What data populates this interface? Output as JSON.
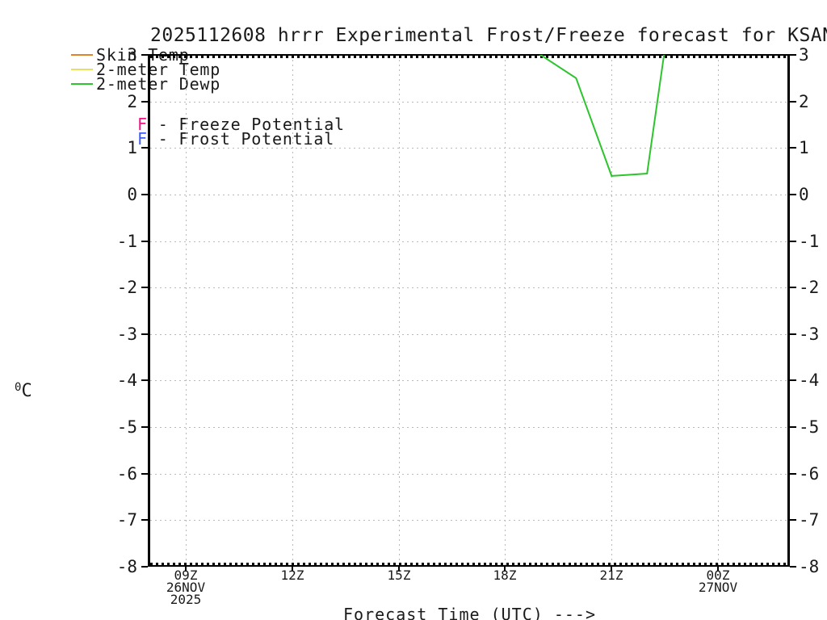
{
  "title": "2025112608 hrrr Experimental Frost/Freeze forecast for KSAN",
  "colors": {
    "skin_temp": "#e0842c",
    "temp_2m": "#e8e060",
    "dewp_2m": "#2dc42d",
    "freeze_flag": "#f01383",
    "frost_flag": "#3f5df0",
    "grid": "#b9b9b9",
    "axis": "#000000"
  },
  "legend": {
    "series": [
      {
        "label": "Skin Temp",
        "color": "#e0842c"
      },
      {
        "label": "2-meter Temp",
        "color": "#e8e060"
      },
      {
        "label": "2-meter Dewp",
        "color": "#2dc42d"
      }
    ],
    "flags": [
      {
        "letter": "F",
        "rest": " - Freeze Potential",
        "color": "#f01383"
      },
      {
        "letter": "F",
        "rest": " - Frost Potential",
        "color": "#3f5df0"
      }
    ]
  },
  "y_axis": {
    "unit_sup": "0",
    "unit_base": "C",
    "min": -8,
    "max": 3,
    "ticks": [
      {
        "value": 3,
        "label": "3"
      },
      {
        "value": 2,
        "label": "2"
      },
      {
        "value": 1,
        "label": "1"
      },
      {
        "value": 0,
        "label": "0"
      },
      {
        "value": -1,
        "label": "-1"
      },
      {
        "value": -2,
        "label": "-2"
      },
      {
        "value": -3,
        "label": "-3"
      },
      {
        "value": -4,
        "label": "-4"
      },
      {
        "value": -5,
        "label": "-5"
      },
      {
        "value": -6,
        "label": "-6"
      },
      {
        "value": -7,
        "label": "-7"
      },
      {
        "value": -8,
        "label": "-8"
      }
    ]
  },
  "x_axis": {
    "title": "Forecast Time (UTC) --->",
    "start_hour": 8,
    "end_hour": 26,
    "ticks": [
      {
        "hour": 9,
        "label": "09Z",
        "sub": [
          "26NOV",
          "2025"
        ]
      },
      {
        "hour": 12,
        "label": "12Z",
        "sub": []
      },
      {
        "hour": 15,
        "label": "15Z",
        "sub": []
      },
      {
        "hour": 18,
        "label": "18Z",
        "sub": []
      },
      {
        "hour": 21,
        "label": "21Z",
        "sub": []
      },
      {
        "hour": 24,
        "label": "00Z",
        "sub": [
          "27NOV"
        ]
      }
    ]
  },
  "chart_data": {
    "type": "line",
    "title": "2025112608 hrrr Experimental Frost/Freeze forecast for KSAN",
    "xlabel": "Forecast Time (UTC) --->",
    "ylabel": "°C",
    "ylim": [
      -8,
      3
    ],
    "xlim_hours_utc": [
      8,
      26
    ],
    "x_tick_hours": [
      9,
      12,
      15,
      18,
      21,
      24
    ],
    "grid": "dotted",
    "legend_position": "top-left",
    "series": [
      {
        "name": "Skin Temp",
        "color": "#e0842c",
        "hours": [],
        "values": [],
        "visible_in_range": false
      },
      {
        "name": "2-meter Temp",
        "color": "#e8e060",
        "hours": [],
        "values": [],
        "visible_in_range": false
      },
      {
        "name": "2-meter Dewp",
        "color": "#2dc42d",
        "hours": [
          18,
          19,
          20,
          21,
          22,
          23
        ],
        "values": [
          3.5,
          3.0,
          2.5,
          0.4,
          0.45,
          5.8
        ],
        "visible_in_range": true,
        "note": "values above 3 are clipped at chart top"
      }
    ]
  }
}
